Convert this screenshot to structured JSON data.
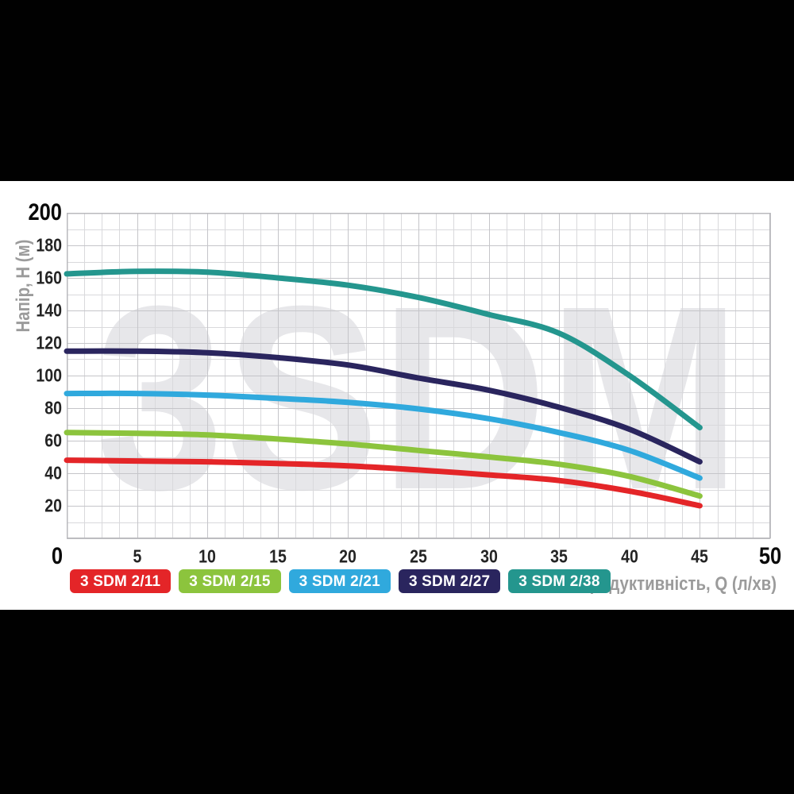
{
  "chart_data": {
    "type": "line",
    "watermark": "3SDM",
    "xlabel": "Продуктивність, Q (л/хв)",
    "ylabel": "Напір, H (м)",
    "xlim": [
      0,
      50
    ],
    "ylim": [
      0,
      200
    ],
    "x_ticks": [
      0,
      5,
      10,
      15,
      20,
      25,
      30,
      35,
      40,
      45,
      50
    ],
    "y_ticks": [
      20,
      40,
      60,
      80,
      100,
      120,
      140,
      160,
      180,
      200
    ],
    "emphasized_ticks": {
      "x": [
        0,
        50
      ],
      "y": [
        200
      ]
    },
    "grid": {
      "on": true,
      "x_minor_step": 1.25,
      "x_major_step": 5,
      "y_minor_step": 10,
      "y_major_step": 20
    },
    "x": [
      0,
      5,
      10,
      15,
      20,
      25,
      30,
      35,
      40,
      45
    ],
    "series": [
      {
        "name": "3 SDM 2/11",
        "color": "#E42528",
        "values": [
          48,
          47.5,
          47,
          46,
          44.5,
          42,
          39,
          35.5,
          29,
          20
        ]
      },
      {
        "name": "3 SDM 2/15",
        "color": "#8CC43D",
        "values": [
          65,
          64.5,
          63.5,
          61,
          58,
          54,
          50,
          45.5,
          38,
          26
        ]
      },
      {
        "name": "3 SDM 2/21",
        "color": "#30A9DD",
        "values": [
          89,
          89,
          88,
          86,
          83.5,
          79.5,
          73.5,
          65,
          54,
          37
        ]
      },
      {
        "name": "3 SDM 2/27",
        "color": "#2A255E",
        "values": [
          115,
          115,
          114,
          111,
          106.5,
          98.5,
          91,
          80.5,
          67,
          47
        ]
      },
      {
        "name": "3 SDM 2/38",
        "color": "#24968E",
        "values": [
          162.5,
          164,
          163.5,
          160,
          155.5,
          148,
          137.5,
          126,
          100,
          68
        ]
      }
    ],
    "legend_position": "bottom-left",
    "colors": {
      "grid_minor": "#d9d9dc",
      "grid_major": "#c5c5c9",
      "plot_border": "#b9b9bd",
      "watermark": "#e7e7ea",
      "tick_text": "#242424",
      "tick_text_emphasized": "#0a0a0a",
      "axis_title_text": "#9b9b9b",
      "letterbox": "#010101"
    }
  }
}
